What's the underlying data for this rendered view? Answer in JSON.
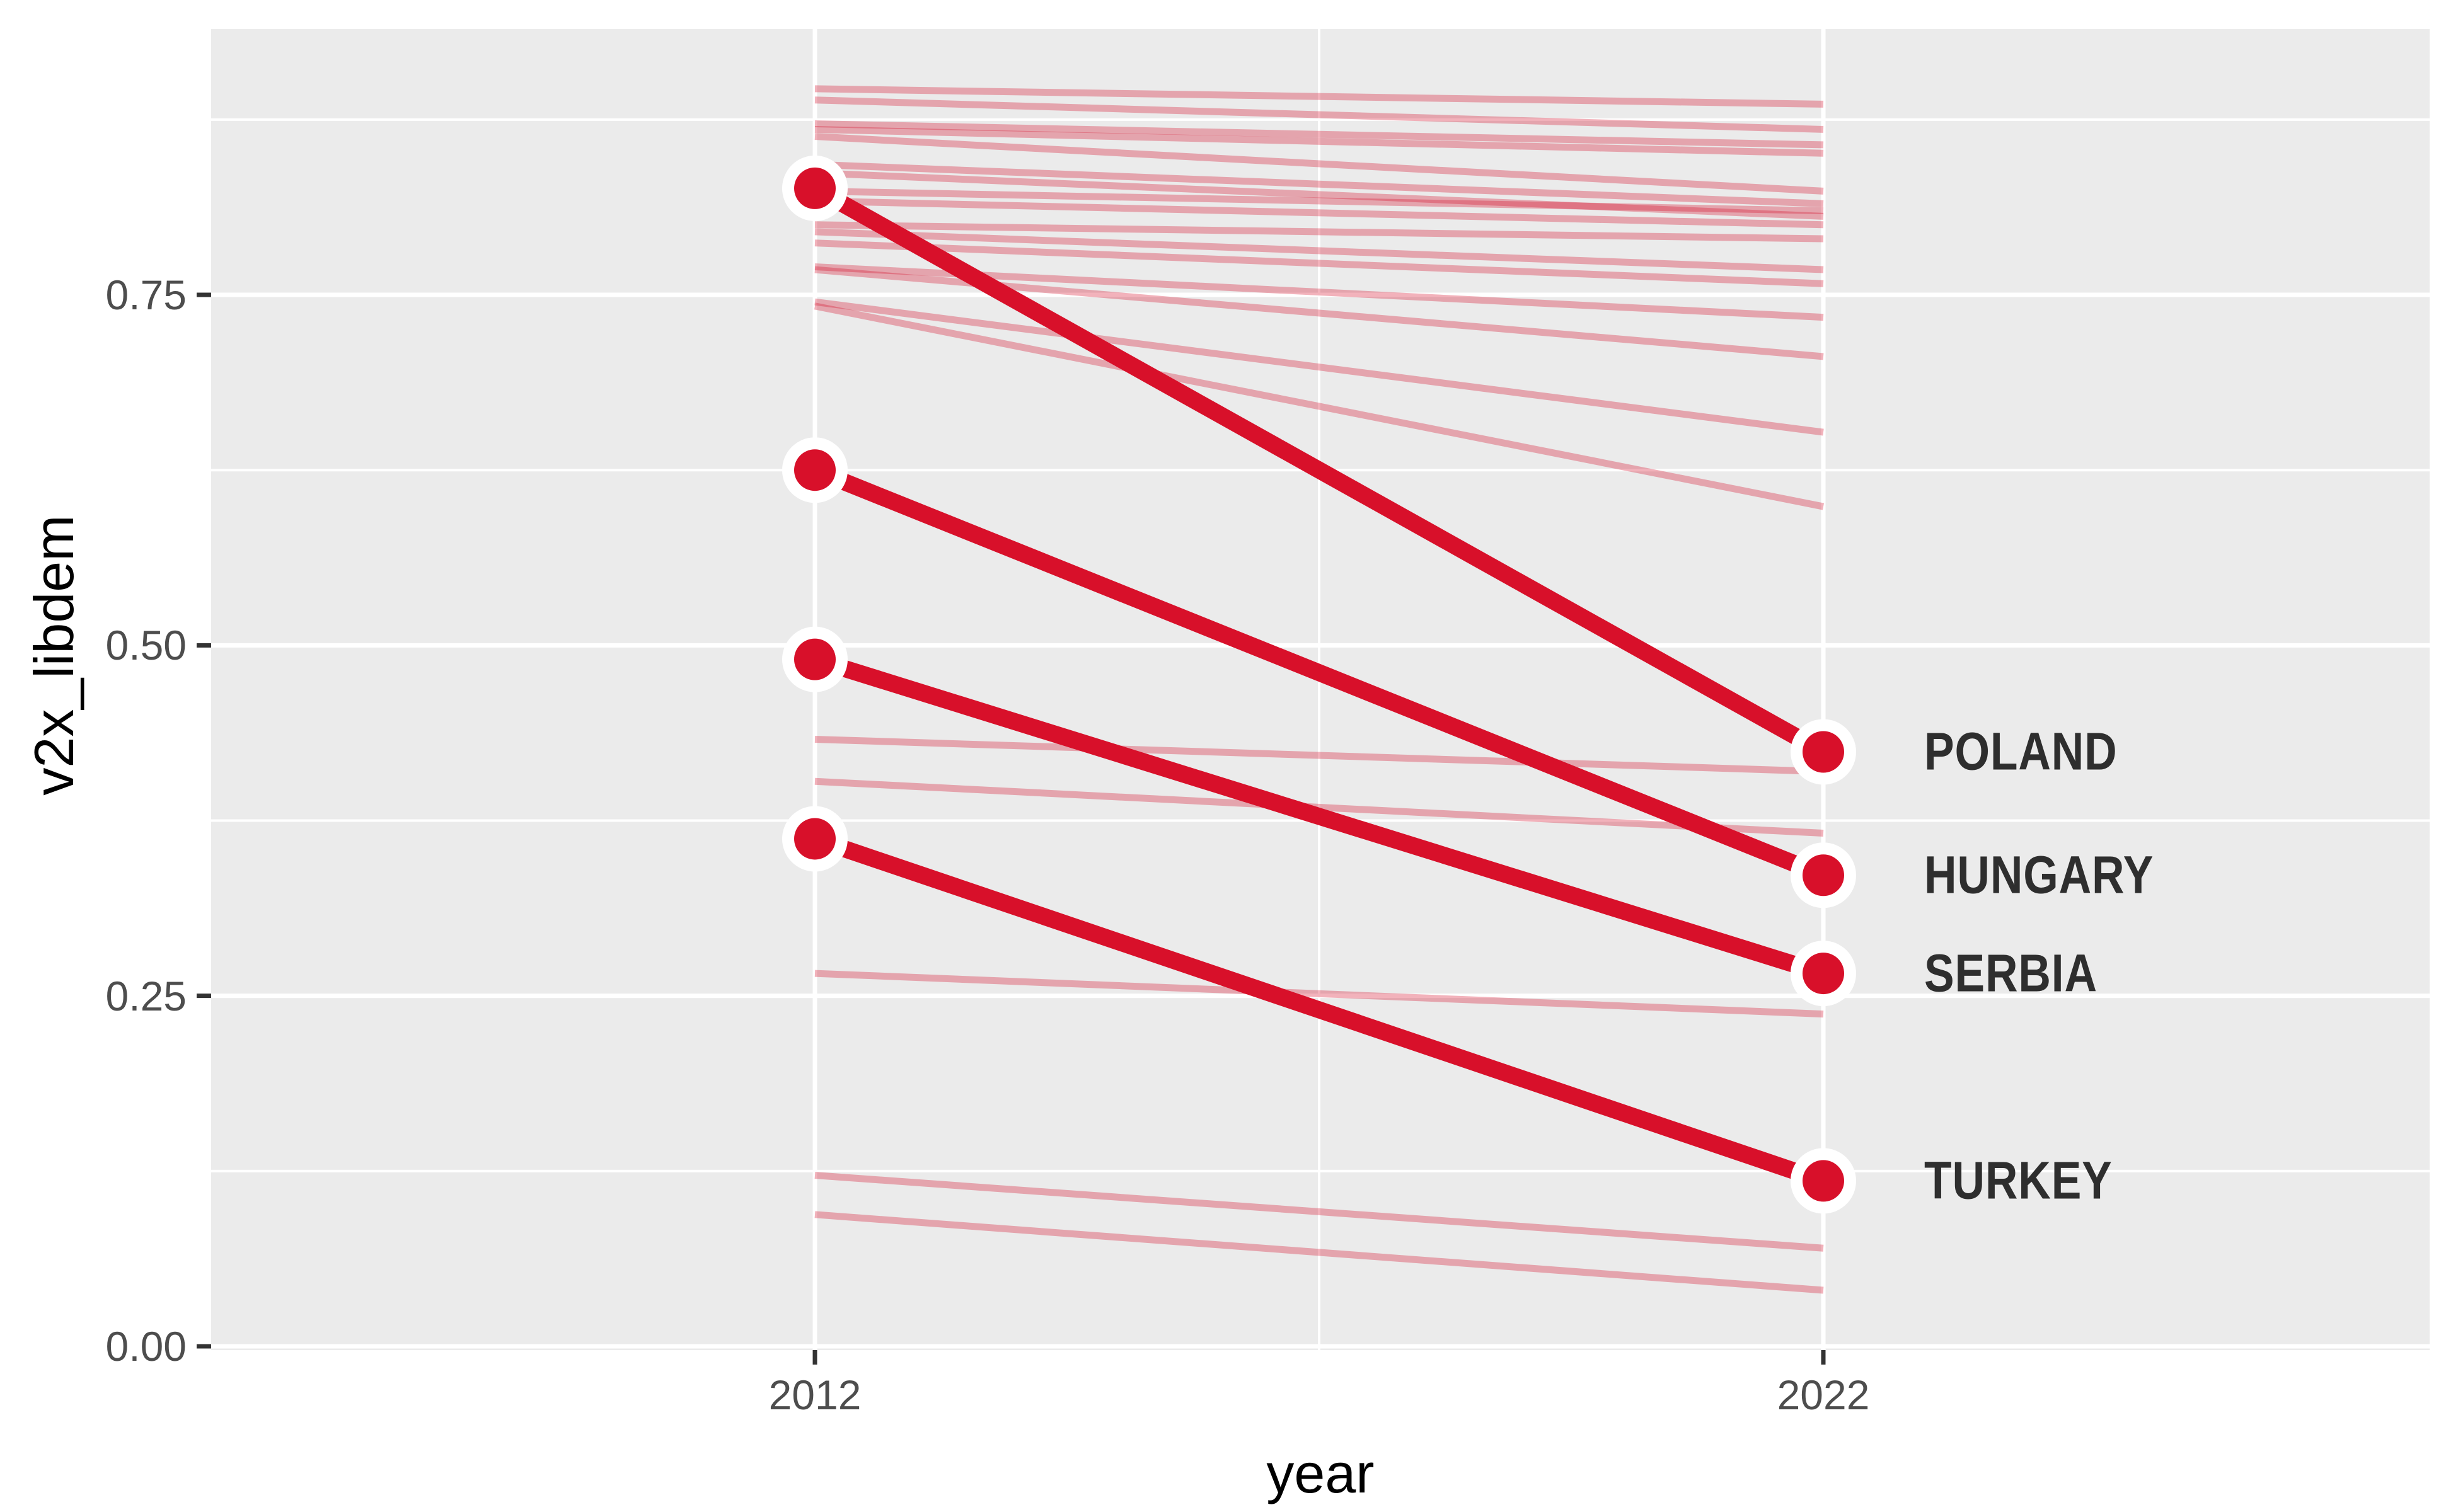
{
  "chart_data": {
    "type": "line",
    "subtype": "slopegraph",
    "title": "",
    "xlabel": "year",
    "ylabel": "v2x_libdem",
    "x_categories": [
      "2012",
      "2022"
    ],
    "xticks": [
      {
        "label": "2012"
      },
      {
        "label": "2022"
      }
    ],
    "yticks": [
      {
        "value": 0.0,
        "label": "0.00"
      },
      {
        "value": 0.25,
        "label": "0.25"
      },
      {
        "value": 0.5,
        "label": "0.50"
      },
      {
        "value": 0.75,
        "label": "0.75"
      }
    ],
    "yticks_minor": [
      0.125,
      0.375,
      0.625,
      0.875
    ],
    "ylim": [
      0.0,
      0.94
    ],
    "grid": "white major and minor gridlines on gray panel",
    "legend_position": "none",
    "highlighted": [
      {
        "label": "POLAND",
        "values": [
          0.826,
          0.424
        ]
      },
      {
        "label": "HUNGARY",
        "values": [
          0.625,
          0.336
        ]
      },
      {
        "label": "SERBIA",
        "values": [
          0.49,
          0.266
        ]
      },
      {
        "label": "TURKEY",
        "values": [
          0.362,
          0.118
        ]
      }
    ],
    "background_series": [
      [
        0.897,
        0.886
      ],
      [
        0.889,
        0.868
      ],
      [
        0.872,
        0.857
      ],
      [
        0.868,
        0.851
      ],
      [
        0.863,
        0.824
      ],
      [
        0.843,
        0.815
      ],
      [
        0.837,
        0.806
      ],
      [
        0.824,
        0.81
      ],
      [
        0.817,
        0.8
      ],
      [
        0.8,
        0.79
      ],
      [
        0.795,
        0.768
      ],
      [
        0.787,
        0.758
      ],
      [
        0.77,
        0.734
      ],
      [
        0.768,
        0.706
      ],
      [
        0.745,
        0.652
      ],
      [
        0.742,
        0.599
      ],
      [
        0.433,
        0.41
      ],
      [
        0.403,
        0.366
      ],
      [
        0.266,
        0.237
      ],
      [
        0.122,
        0.07
      ],
      [
        0.094,
        0.04
      ]
    ]
  },
  "colors": {
    "accent_red": "#D8102A",
    "background_line_alpha": 0.32,
    "panel_background": "#EBEBEB",
    "gridline": "#FFFFFF",
    "axis_text": "#4D4D4D",
    "tick_mark": "#333333",
    "axis_title_text": "#000000",
    "country_label_text": "#2E2E2E",
    "point_ring": "#FFFFFF"
  }
}
